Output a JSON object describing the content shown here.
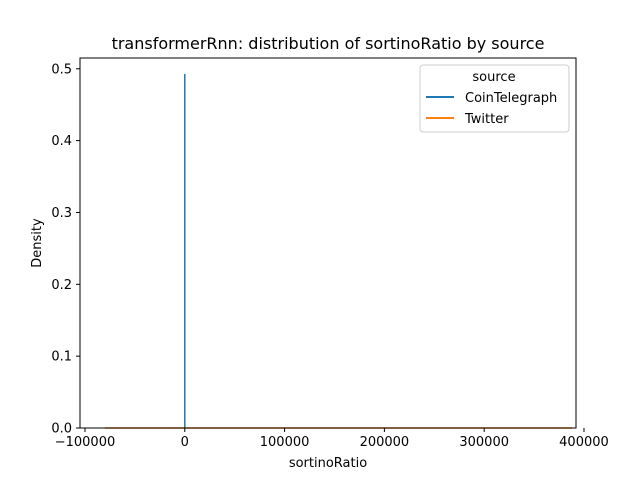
{
  "chart_data": {
    "type": "line",
    "title": "transformerRnn: distribution of sortinoRatio by source",
    "xlabel": "sortinoRatio",
    "ylabel": "Density",
    "xlim": [
      -105000,
      392000
    ],
    "ylim": [
      0,
      0.515
    ],
    "x_ticks": [
      -100000,
      0,
      100000,
      200000,
      300000,
      400000
    ],
    "x_tick_labels": [
      "−100000",
      "0",
      "100000",
      "200000",
      "300000",
      "400000"
    ],
    "y_ticks": [
      0.0,
      0.1,
      0.2,
      0.3,
      0.4,
      0.5
    ],
    "y_tick_labels": [
      "0.0",
      "0.1",
      "0.2",
      "0.3",
      "0.4",
      "0.5"
    ],
    "grid": false,
    "legend": {
      "title": "source",
      "placement": "top-right"
    },
    "series": [
      {
        "name": "CoinTelegraph",
        "color": "#1f77b4",
        "x": [
          -1,
          -0.5,
          0,
          0.5,
          1
        ],
        "y": [
          0,
          0,
          0.492,
          0,
          0
        ]
      },
      {
        "name": "Twitter",
        "color": "#ff7f0e",
        "x": [
          -80000,
          0,
          100000,
          200000,
          300000,
          388000
        ],
        "y": [
          1e-05,
          1e-05,
          1e-05,
          1e-05,
          1e-05,
          1e-05
        ]
      }
    ]
  }
}
